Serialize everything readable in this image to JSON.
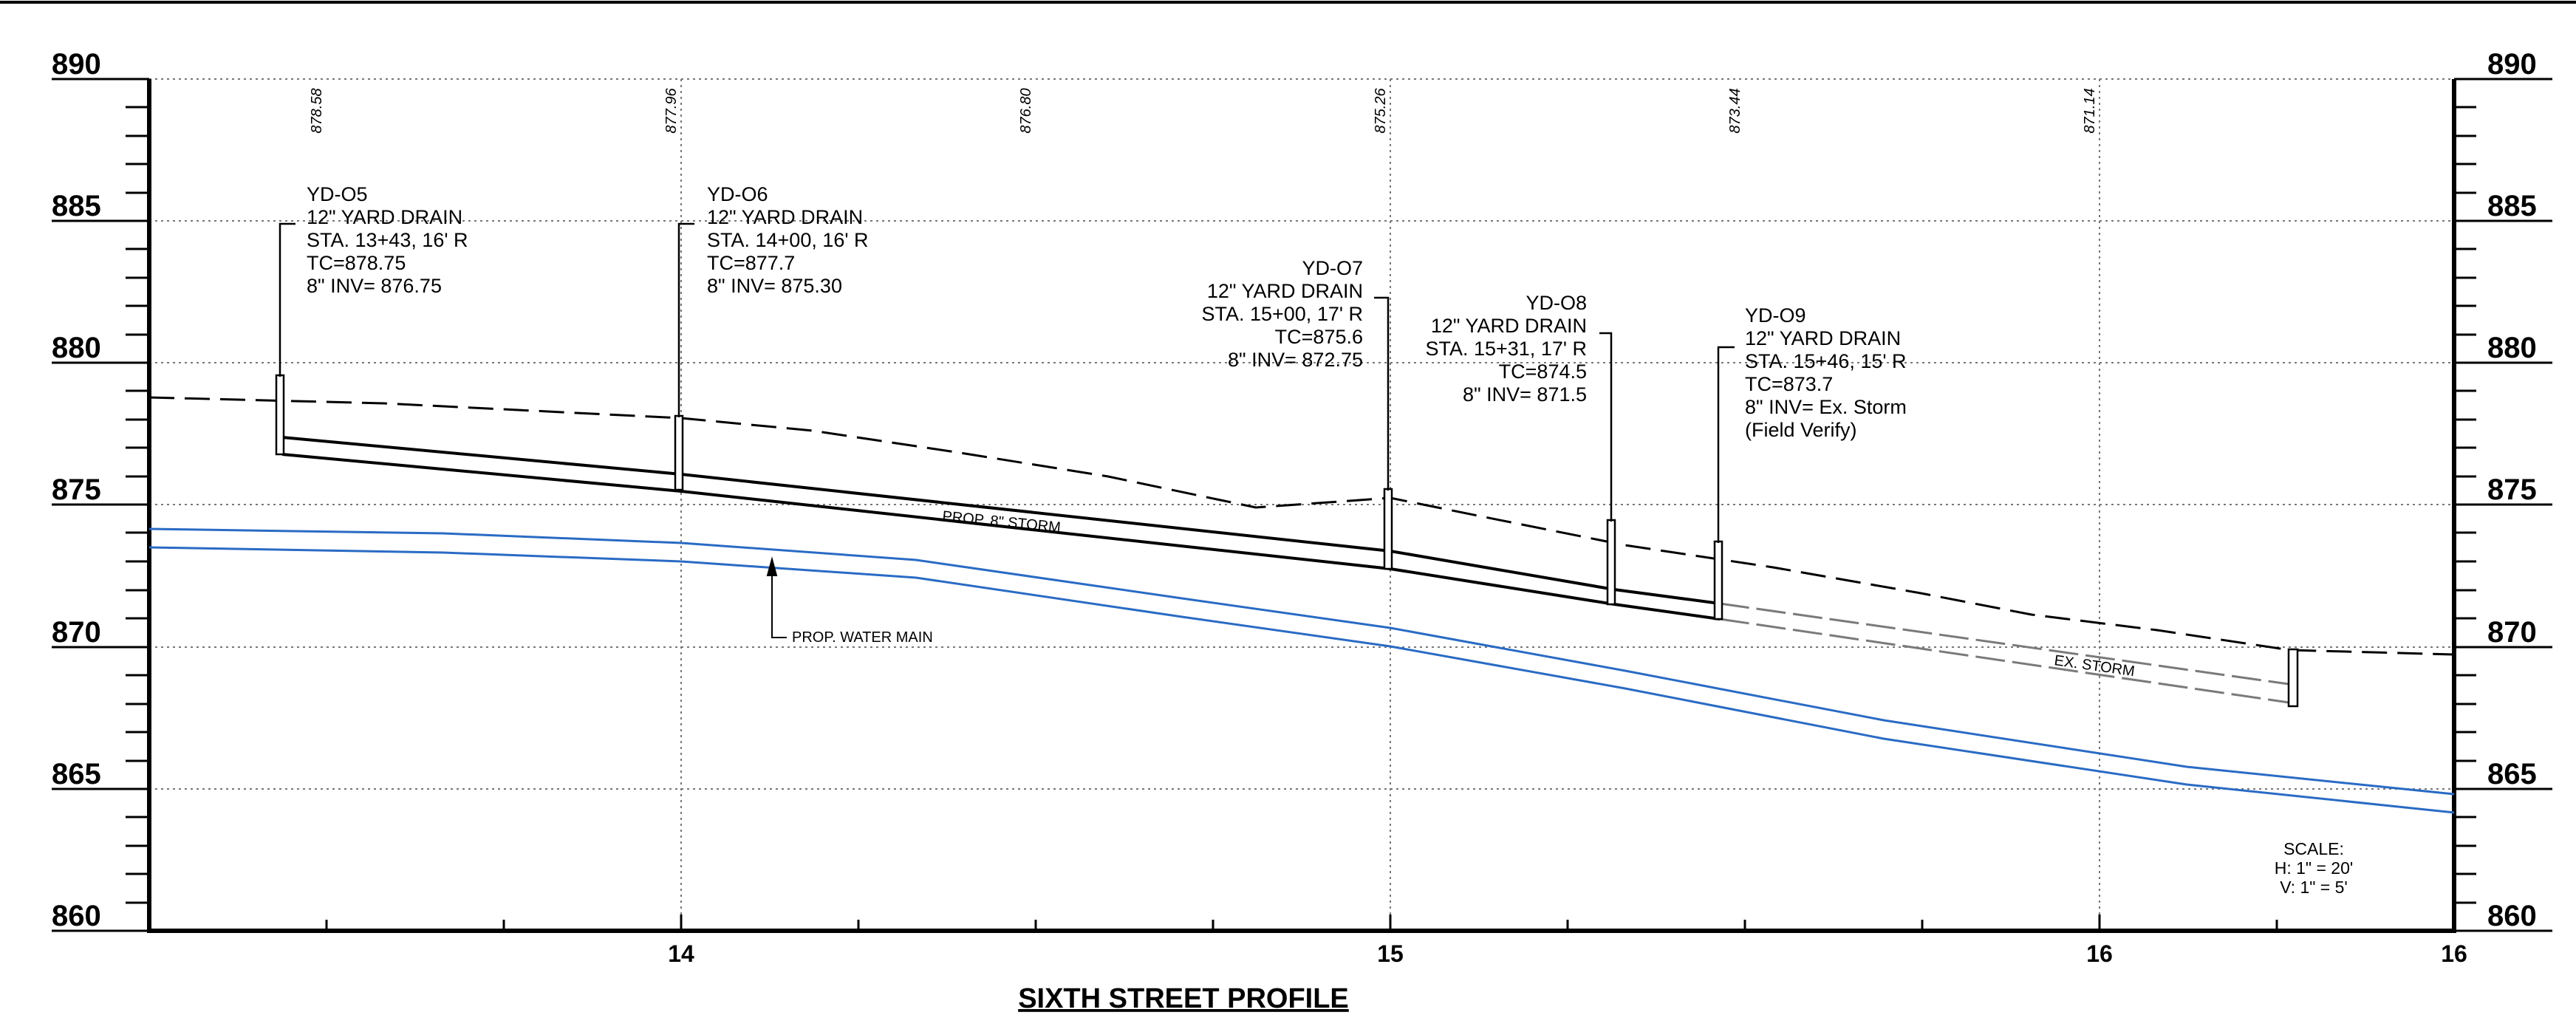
{
  "drawing": {
    "title": "SIXTH STREET PROFILE",
    "scale": [
      "SCALE:",
      "H: 1\" = 20'",
      "V: 1\" = 5'"
    ],
    "stationing_labels": [
      "14",
      "15",
      "16",
      "16"
    ],
    "elevation_labels": [
      "890",
      "885",
      "880",
      "875",
      "870",
      "865",
      "860"
    ],
    "grade_elevations": [
      "878.58",
      "877.96",
      "876.80",
      "875.26",
      "873.44",
      "871.14"
    ],
    "pipe_labels": {
      "storm": "PROP. 8\" STORM",
      "existing_storm": "EX. STORM",
      "water_main": "PROP. WATER MAIN"
    }
  },
  "structures": [
    {
      "name": "YD-O5",
      "type": "12\" YARD DRAIN",
      "station": "STA. 13+43, 16' R",
      "tc": "TC=878.75",
      "inv": "8\" INV= 876.75"
    },
    {
      "name": "YD-O6",
      "type": "12\" YARD DRAIN",
      "station": "STA. 14+00, 16' R",
      "tc": "TC=877.7",
      "inv": "8\" INV= 875.30"
    },
    {
      "name": "YD-O7",
      "type": "12\" YARD DRAIN",
      "station": "STA. 15+00, 17' R",
      "tc": "TC=875.6",
      "inv": "8\" INV= 872.75"
    },
    {
      "name": "YD-O8",
      "type": "12\" YARD DRAIN",
      "station": "STA. 15+31, 17' R",
      "tc": "TC=874.5",
      "inv": "8\" INV= 871.5"
    },
    {
      "name": "YD-O9",
      "type": "12\" YARD DRAIN",
      "station": "STA. 15+46, 15' R",
      "tc": "TC=873.7",
      "inv": "8\" INV= Ex. Storm",
      "note": "(Field Verify)"
    }
  ],
  "colors": {
    "water_main": "#2a6bc4",
    "existing": "#7a7a7a",
    "linework": "#000000"
  }
}
